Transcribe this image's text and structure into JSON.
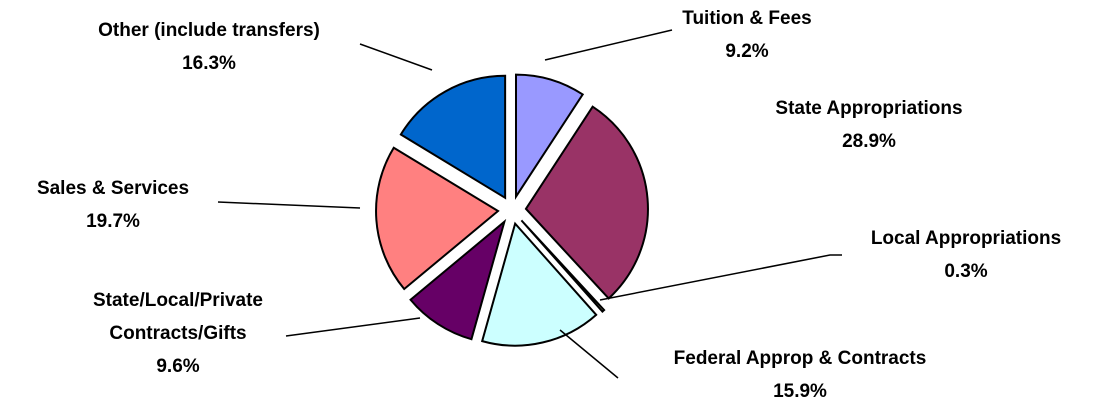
{
  "chart_data": {
    "type": "pie",
    "categories": [
      "Tuition & Fees",
      "State Appropriations",
      "Local Appropriations",
      "Federal Approp & Contracts",
      "State/Local/Private Contracts/Gifts",
      "Sales & Services",
      "Other (include transfers)"
    ],
    "values": [
      9.2,
      28.9,
      0.3,
      15.9,
      9.6,
      19.7,
      16.3
    ],
    "value_labels": [
      "9.2%",
      "28.9%",
      "0.3%",
      "15.9%",
      "9.6%",
      "19.7%",
      "16.3%"
    ],
    "colors": [
      "#9999ff",
      "#993366",
      "#ffffcc",
      "#ccffff",
      "#660066",
      "#ff8080",
      "#0066cc"
    ]
  }
}
